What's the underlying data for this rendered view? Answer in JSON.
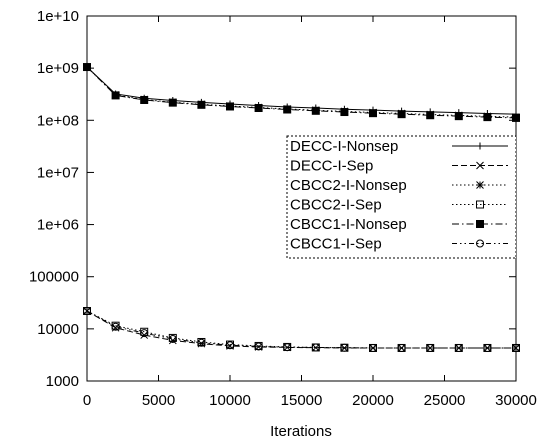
{
  "chart_data": {
    "type": "line",
    "title": "",
    "xlabel": "Iterations",
    "ylabel": "",
    "xlim": [
      0,
      30000
    ],
    "ylim": [
      1000,
      10000000000
    ],
    "yscale": "log",
    "grid": false,
    "legend_position": "right",
    "x_ticks": [
      "0",
      "5000",
      "10000",
      "15000",
      "20000",
      "25000",
      "30000"
    ],
    "y_ticks": [
      "1000",
      "10000",
      "100000",
      "1e+06",
      "1e+07",
      "1e+08",
      "1e+09",
      "1e+10"
    ],
    "x": [
      0,
      2000,
      4000,
      6000,
      8000,
      10000,
      12000,
      14000,
      16000,
      18000,
      20000,
      22000,
      24000,
      26000,
      28000,
      30000
    ],
    "series": [
      {
        "name": "DECC-I-Nonsep",
        "marker": "plus",
        "dash": "solid",
        "values": [
          1050000000,
          320000000,
          265000000,
          240000000,
          220000000,
          205000000,
          192000000,
          180000000,
          172000000,
          163000000,
          157000000,
          150000000,
          145000000,
          140000000,
          135000000,
          131000000
        ]
      },
      {
        "name": "DECC-I-Sep",
        "marker": "cross",
        "dash": "dashed",
        "values": [
          22000,
          10500,
          7600,
          6000,
          5200,
          4700,
          4500,
          4400,
          4350,
          4300,
          4300,
          4300,
          4300,
          4300,
          4300,
          4300
        ]
      },
      {
        "name": "CBCC2-I-Nonsep",
        "marker": "star",
        "dash": "dotted",
        "values": [
          1050000000,
          305000000,
          250000000,
          222000000,
          202000000,
          188000000,
          176000000,
          165000000,
          156000000,
          148000000,
          141000000,
          135000000,
          129000000,
          124000000,
          119000000,
          115000000
        ]
      },
      {
        "name": "CBCC2-I-Sep",
        "marker": "square-open",
        "dash": "dotted",
        "values": [
          22000,
          11500,
          8800,
          6700,
          5600,
          5000,
          4700,
          4500,
          4400,
          4350,
          4300,
          4300,
          4300,
          4300,
          4300,
          4300
        ]
      },
      {
        "name": "CBCC1-I-Nonsep",
        "marker": "square-filled",
        "dash": "dashdot",
        "values": [
          1050000000,
          300000000,
          245000000,
          218000000,
          198000000,
          184000000,
          172000000,
          161000000,
          152000000,
          144000000,
          137000000,
          131000000,
          125000000,
          120000000,
          115000000,
          111000000
        ]
      },
      {
        "name": "CBCC1-I-Sep",
        "marker": "circle-open",
        "dash": "dashdotdot",
        "values": [
          22000,
          11000,
          8300,
          6400,
          5400,
          4850,
          4600,
          4450,
          4400,
          4350,
          4300,
          4300,
          4300,
          4300,
          4300,
          4300
        ]
      }
    ]
  }
}
